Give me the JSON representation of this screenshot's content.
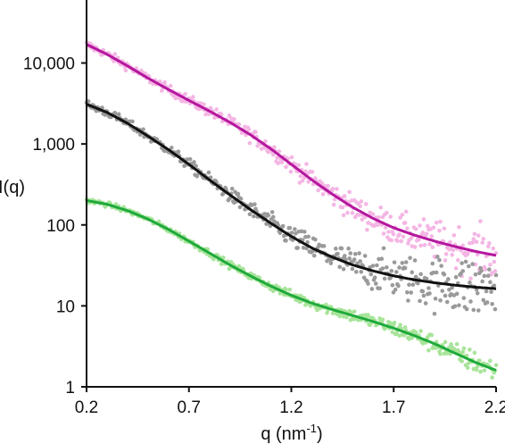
{
  "chart_data": {
    "type": "scatter",
    "title": "",
    "xlabel": "q (nm",
    "xlabel_sup": "-1",
    "xlabel_end": ")",
    "ylabel": "I(q)",
    "xlim": [
      0.2,
      2.2
    ],
    "ylim": [
      1,
      60000
    ],
    "yscale": "log",
    "x_ticks": [
      0.2,
      0.7,
      1.2,
      1.7,
      2.2
    ],
    "x_tick_labels": [
      "0.2",
      "0.7",
      "1.2",
      "1.7",
      "2.2"
    ],
    "y_ticks": [
      1,
      10,
      100,
      1000,
      10000
    ],
    "y_tick_labels": [
      "1",
      "10",
      "100",
      "1,000",
      "10,000"
    ],
    "grid": false,
    "legend": "none",
    "series": [
      {
        "id": "magenta",
        "line_color": "#b5179e",
        "point_color": "#f4b6e4",
        "fit_x": [
          0.2,
          0.3,
          0.4,
          0.5,
          0.6,
          0.7,
          0.8,
          0.9,
          1.0,
          1.1,
          1.2,
          1.3,
          1.4,
          1.5,
          1.6,
          1.7,
          1.8,
          1.9,
          2.0,
          2.1,
          2.2
        ],
        "fit_y": [
          17000,
          12800,
          9200,
          6500,
          4700,
          3450,
          2550,
          1850,
          1300,
          870,
          560,
          360,
          240,
          165,
          120,
          92,
          75,
          63,
          54,
          47,
          42
        ],
        "noise": [
          0.05,
          0.32
        ]
      },
      {
        "id": "black",
        "line_color": "#111111",
        "point_color": "#9a9a9a",
        "fit_x": [
          0.2,
          0.3,
          0.4,
          0.5,
          0.6,
          0.7,
          0.8,
          0.9,
          1.0,
          1.1,
          1.2,
          1.3,
          1.4,
          1.5,
          1.6,
          1.7,
          1.8,
          1.9,
          2.0,
          2.1,
          2.2
        ],
        "fit_y": [
          3100,
          2450,
          1800,
          1250,
          850,
          560,
          360,
          235,
          155,
          105,
          72,
          52,
          40,
          32,
          27,
          23.5,
          21,
          19.3,
          18,
          17,
          16.3
        ],
        "noise": [
          0.05,
          0.45
        ]
      },
      {
        "id": "green",
        "line_color": "#1faa3c",
        "point_color": "#a8e49a",
        "fit_x": [
          0.2,
          0.3,
          0.4,
          0.5,
          0.6,
          0.7,
          0.8,
          0.9,
          1.0,
          1.1,
          1.2,
          1.3,
          1.4,
          1.5,
          1.6,
          1.7,
          1.8,
          1.9,
          2.0,
          2.1,
          2.2
        ],
        "fit_y": [
          200,
          180,
          150,
          118,
          88,
          63,
          45,
          32,
          23.5,
          17.5,
          13.5,
          10.8,
          9.0,
          7.6,
          6.4,
          5.3,
          4.3,
          3.4,
          2.6,
          2.0,
          1.6
        ],
        "noise": [
          0.03,
          0.15
        ]
      }
    ]
  }
}
